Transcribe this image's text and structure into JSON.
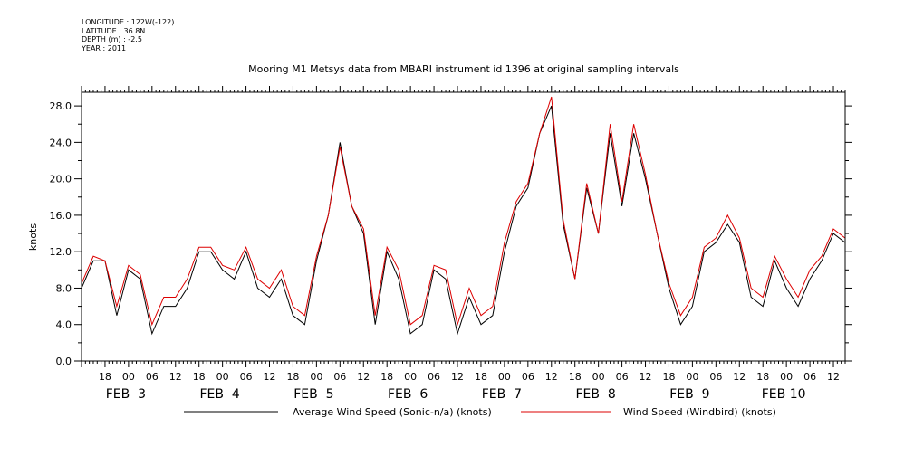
{
  "header": {
    "lines": [
      "LONGITUDE : 122W(-122)",
      "LATITUDE : 36.8N",
      "DEPTH (m) : -2.5",
      "YEAR : 2011"
    ]
  },
  "chart_data": {
    "type": "line",
    "title": "Mooring M1 Metsys data from MBARI instrument id 1396 at original sampling intervals",
    "ylabel": "knots",
    "xlabel": "",
    "ylim": [
      0,
      29.5
    ],
    "yticks": [
      "0.0",
      "4.0",
      "8.0",
      "12.0",
      "16.0",
      "20.0",
      "24.0",
      "28.0"
    ],
    "x_unit": "hours since FEB 2 2011 12:00",
    "xlim": [
      0,
      195
    ],
    "hour_ticks": [
      "18",
      "00",
      "06",
      "12",
      "18",
      "00",
      "06",
      "12",
      "18",
      "00",
      "06",
      "12",
      "18",
      "00",
      "06",
      "12",
      "18",
      "00",
      "06",
      "12",
      "18",
      "00",
      "06",
      "12",
      "18",
      "00",
      "06",
      "12",
      "18",
      "00",
      "06",
      "12"
    ],
    "day_labels": [
      "FEB  3",
      "FEB  4",
      "FEB  5",
      "FEB  6",
      "FEB  7",
      "FEB  8",
      "FEB  9",
      "FEB 10"
    ],
    "grid": false,
    "legend_position": "bottom",
    "series": [
      {
        "name": "Average Wind Speed (Sonic-n/a) (knots)",
        "color": "#000000",
        "x": [
          0,
          3,
          6,
          9,
          12,
          15,
          18,
          21,
          24,
          27,
          30,
          33,
          36,
          39,
          42,
          45,
          48,
          51,
          54,
          57,
          60,
          63,
          66,
          69,
          72,
          75,
          78,
          81,
          84,
          87,
          90,
          93,
          96,
          99,
          102,
          105,
          108,
          111,
          114,
          117,
          120,
          123,
          126,
          129,
          132,
          135,
          138,
          141,
          144,
          147,
          150,
          153,
          156,
          159,
          162,
          165,
          168,
          171,
          174,
          177,
          180,
          183,
          186,
          189,
          192,
          195
        ],
        "values": [
          8,
          11,
          11,
          5,
          10,
          9,
          3,
          6,
          6,
          8,
          12,
          12,
          10,
          9,
          12,
          8,
          7,
          9,
          5,
          4,
          11,
          16,
          24,
          17,
          14,
          4,
          12,
          9,
          3,
          4,
          10,
          9,
          3,
          7,
          4,
          5,
          12,
          17,
          19,
          25,
          28,
          15,
          9,
          19,
          14,
          25,
          17,
          25,
          20,
          14,
          8,
          4,
          6,
          12,
          13,
          15,
          13,
          7,
          6,
          11,
          8,
          6,
          9,
          11,
          14,
          13
        ]
      },
      {
        "name": "Wind Speed (Windbird) (knots)",
        "color": "#dd0000",
        "x": [
          0,
          3,
          6,
          9,
          12,
          15,
          18,
          21,
          24,
          27,
          30,
          33,
          36,
          39,
          42,
          45,
          48,
          51,
          54,
          57,
          60,
          63,
          66,
          69,
          72,
          75,
          78,
          81,
          84,
          87,
          90,
          93,
          96,
          99,
          102,
          105,
          108,
          111,
          114,
          117,
          120,
          123,
          126,
          129,
          132,
          135,
          138,
          141,
          144,
          147,
          150,
          153,
          156,
          159,
          162,
          165,
          168,
          171,
          174,
          177,
          180,
          183,
          186,
          189,
          192,
          195
        ],
        "values": [
          8.5,
          11.5,
          11,
          6,
          10.5,
          9.5,
          4,
          7,
          7,
          9,
          12.5,
          12.5,
          10.5,
          10,
          12.5,
          9,
          8,
          10,
          6,
          5,
          11.5,
          16,
          23.5,
          17,
          14.5,
          5,
          12.5,
          10,
          4,
          5,
          10.5,
          10,
          4,
          8,
          5,
          6,
          13,
          17.5,
          19.5,
          25,
          29,
          15.5,
          9,
          19.5,
          14,
          26,
          17.5,
          26,
          20.5,
          14,
          8.5,
          5,
          7,
          12.5,
          13.5,
          16,
          13.5,
          8,
          7,
          11.5,
          9,
          7,
          10,
          11.5,
          14.5,
          13.5
        ]
      }
    ]
  },
  "legend": [
    {
      "label": "Average Wind Speed (Sonic-n/a) (knots)",
      "color": "#000000"
    },
    {
      "label": "Wind Speed (Windbird) (knots)",
      "color": "#dd0000"
    }
  ]
}
